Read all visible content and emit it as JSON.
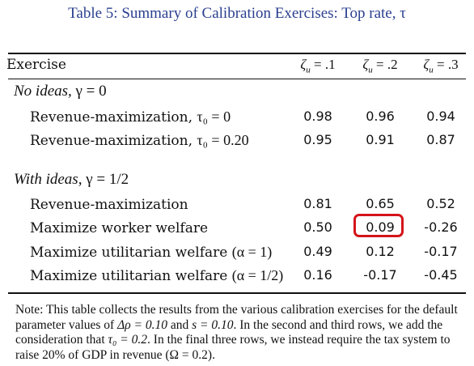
{
  "title": "Table 5: Summary of Calibration Exercises: Top rate, τ",
  "header": {
    "exercise": "Exercise",
    "columns": [
      {
        "symbol": "ζ",
        "sub": "u",
        "value": " = .1"
      },
      {
        "symbol": "ζ",
        "sub": "u",
        "value": " = .2"
      },
      {
        "symbol": "ζ",
        "sub": "u",
        "value": " = .3"
      }
    ]
  },
  "groups": [
    {
      "label": "No ideas,",
      "param": "γ = 0",
      "rows": [
        {
          "label": "Revenue-maximization, ",
          "math": "τ₀ = 0",
          "values": [
            "0.98",
            "0.96",
            "0.94"
          ]
        },
        {
          "label": "Revenue-maximization, ",
          "math": "τ₀ = 0.20",
          "values": [
            "0.95",
            "0.91",
            "0.87"
          ]
        }
      ]
    },
    {
      "label": "With ideas,",
      "param": "γ = 1/2",
      "rows": [
        {
          "label": "Revenue-maximization",
          "math": "",
          "values": [
            "0.81",
            "0.65",
            "0.52"
          ]
        },
        {
          "label": "Maximize worker welfare",
          "math": "",
          "values": [
            "0.50",
            "0.09",
            "-0.26"
          ]
        },
        {
          "label": "Maximize utilitarian welfare ",
          "math": "(α = 1)",
          "values": [
            "0.49",
            "0.12",
            "-0.17"
          ]
        },
        {
          "label": "Maximize utilitarian welfare ",
          "math": "(α = 1/2)",
          "values": [
            "0.16",
            "-0.17",
            "-0.45"
          ]
        }
      ]
    }
  ],
  "note": {
    "text_1": "Note: This table collects the results from the various calibration exercises for the default parameter values of ",
    "m1": "Δρ = 0.10",
    "text_2": " and ",
    "m2": "s = 0.10",
    "text_3": ". In the second and third rows, we add the consideration that ",
    "m3": "τ₀ = 0.2",
    "text_4": ". In the final three rows, we instead require the tax system to raise 20% of GDP in revenue ",
    "m4": "(Ω = 0.2)",
    "text_5": "."
  },
  "highlight_color": "#d4141a",
  "title_color": "#2a3f8f"
}
